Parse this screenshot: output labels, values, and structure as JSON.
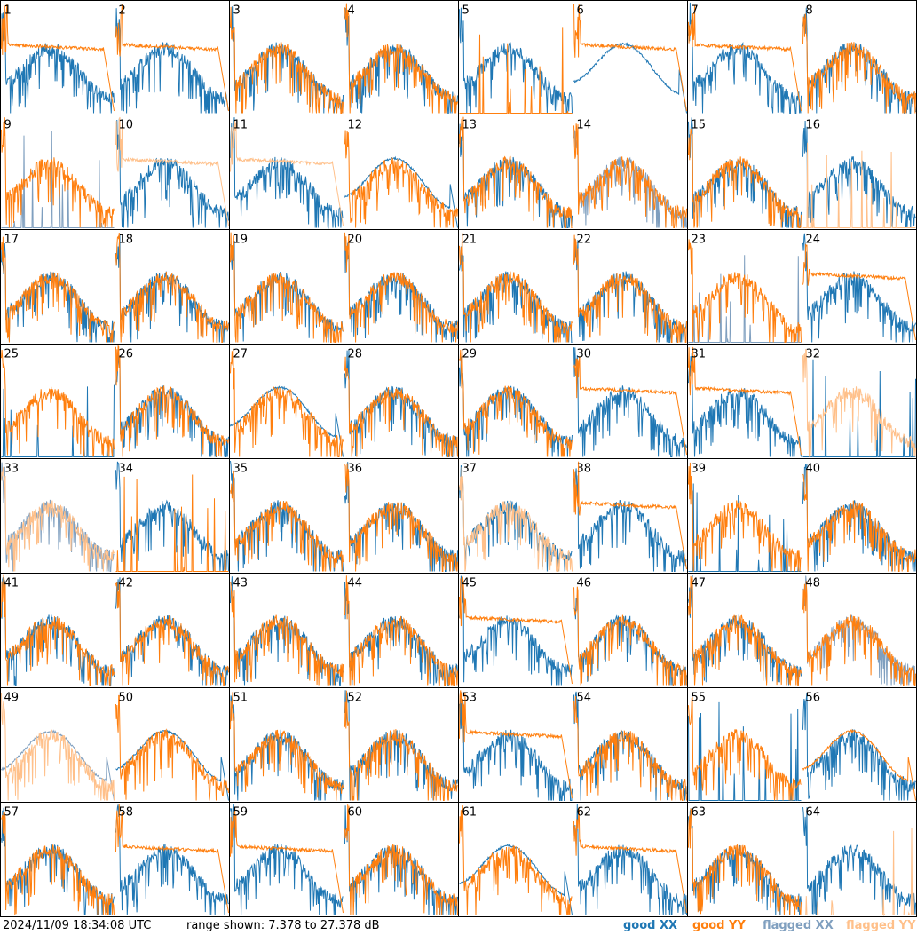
{
  "footer": {
    "timestamp": "2024/11/09 18:34:08 UTC",
    "range": "range shown: 7.378 to 27.378 dB"
  },
  "legend": [
    {
      "label": "good XX",
      "color": "#1f77b4"
    },
    {
      "label": "good YY",
      "color": "#ff7f0e"
    },
    {
      "label": "flagged XX",
      "color": "#7f9fbf"
    },
    {
      "label": "flagged YY",
      "color": "#ffc08a"
    }
  ],
  "chart_data": {
    "type": "line",
    "layout": "small-multiples 8x8",
    "y_range_db": [
      7.378,
      27.378
    ],
    "panels": [
      {
        "id": "1",
        "xx": "good",
        "yy": "good",
        "xx_shape": "noisy",
        "yy_shape": "smooth-rolloff"
      },
      {
        "id": "2",
        "xx": "good",
        "yy": "good",
        "xx_shape": "noisy",
        "yy_shape": "smooth-rolloff"
      },
      {
        "id": "3",
        "xx": "good",
        "yy": "good",
        "xx_shape": "noisy",
        "yy_shape": "noisy"
      },
      {
        "id": "4",
        "xx": "good",
        "yy": "good",
        "xx_shape": "noisy",
        "yy_shape": "noisy"
      },
      {
        "id": "5",
        "xx": "good",
        "yy": "good",
        "xx_shape": "noisy",
        "yy_shape": "spikes"
      },
      {
        "id": "6",
        "xx": "good",
        "yy": "good",
        "xx_shape": "smooth",
        "yy_shape": "smooth-rolloff"
      },
      {
        "id": "7",
        "xx": "good",
        "yy": "good",
        "xx_shape": "noisy",
        "yy_shape": "smooth-rolloff"
      },
      {
        "id": "8",
        "xx": "good",
        "yy": "good",
        "xx_shape": "noisy",
        "yy_shape": "noisy"
      },
      {
        "id": "9",
        "xx": "flagged",
        "yy": "good",
        "xx_shape": "spikes",
        "yy_shape": "noisy"
      },
      {
        "id": "10",
        "xx": "good",
        "yy": "flagged",
        "xx_shape": "noisy",
        "yy_shape": "smooth-rolloff"
      },
      {
        "id": "11",
        "xx": "good",
        "yy": "flagged",
        "xx_shape": "noisy",
        "yy_shape": "smooth-rolloff"
      },
      {
        "id": "12",
        "xx": "good",
        "yy": "good",
        "xx_shape": "smooth",
        "yy_shape": "noisy"
      },
      {
        "id": "13",
        "xx": "good",
        "yy": "good",
        "xx_shape": "noisy",
        "yy_shape": "noisy"
      },
      {
        "id": "14",
        "xx": "flagged",
        "yy": "good",
        "xx_shape": "noisy",
        "yy_shape": "noisy"
      },
      {
        "id": "15",
        "xx": "good",
        "yy": "good",
        "xx_shape": "noisy",
        "yy_shape": "noisy"
      },
      {
        "id": "16",
        "xx": "good",
        "yy": "flagged",
        "xx_shape": "noisy",
        "yy_shape": "spikes"
      },
      {
        "id": "17",
        "xx": "good",
        "yy": "good",
        "xx_shape": "noisy",
        "yy_shape": "noisy"
      },
      {
        "id": "18",
        "xx": "good",
        "yy": "good",
        "xx_shape": "noisy",
        "yy_shape": "noisy"
      },
      {
        "id": "19",
        "xx": "good",
        "yy": "good",
        "xx_shape": "noisy",
        "yy_shape": "noisy"
      },
      {
        "id": "20",
        "xx": "good",
        "yy": "good",
        "xx_shape": "noisy",
        "yy_shape": "noisy"
      },
      {
        "id": "21",
        "xx": "good",
        "yy": "good",
        "xx_shape": "noisy",
        "yy_shape": "noisy"
      },
      {
        "id": "22",
        "xx": "good",
        "yy": "good",
        "xx_shape": "noisy",
        "yy_shape": "noisy"
      },
      {
        "id": "23",
        "xx": "flagged",
        "yy": "good",
        "xx_shape": "spikes",
        "yy_shape": "noisy"
      },
      {
        "id": "24",
        "xx": "good",
        "yy": "good",
        "xx_shape": "noisy",
        "yy_shape": "smooth-rolloff"
      },
      {
        "id": "25",
        "xx": "good",
        "yy": "good",
        "xx_shape": "spikes",
        "yy_shape": "noisy"
      },
      {
        "id": "26",
        "xx": "good",
        "yy": "good",
        "xx_shape": "noisy",
        "yy_shape": "noisy"
      },
      {
        "id": "27",
        "xx": "good",
        "yy": "good",
        "xx_shape": "smooth",
        "yy_shape": "noisy"
      },
      {
        "id": "28",
        "xx": "good",
        "yy": "good",
        "xx_shape": "noisy",
        "yy_shape": "noisy"
      },
      {
        "id": "29",
        "xx": "good",
        "yy": "good",
        "xx_shape": "noisy",
        "yy_shape": "noisy"
      },
      {
        "id": "30",
        "xx": "good",
        "yy": "good",
        "xx_shape": "noisy",
        "yy_shape": "smooth-rolloff"
      },
      {
        "id": "31",
        "xx": "good",
        "yy": "good",
        "xx_shape": "noisy",
        "yy_shape": "smooth-rolloff"
      },
      {
        "id": "32",
        "xx": "good",
        "yy": "flagged",
        "xx_shape": "spikes",
        "yy_shape": "noisy"
      },
      {
        "id": "33",
        "xx": "flagged",
        "yy": "flagged",
        "xx_shape": "noisy",
        "yy_shape": "noisy"
      },
      {
        "id": "34",
        "xx": "good",
        "yy": "good",
        "xx_shape": "noisy",
        "yy_shape": "spikes"
      },
      {
        "id": "35",
        "xx": "good",
        "yy": "good",
        "xx_shape": "noisy",
        "yy_shape": "noisy"
      },
      {
        "id": "36",
        "xx": "good",
        "yy": "good",
        "xx_shape": "noisy",
        "yy_shape": "noisy"
      },
      {
        "id": "37",
        "xx": "good",
        "yy": "flagged",
        "xx_shape": "noisy",
        "yy_shape": "noisy"
      },
      {
        "id": "38",
        "xx": "good",
        "yy": "good",
        "xx_shape": "noisy",
        "yy_shape": "smooth-rolloff"
      },
      {
        "id": "39",
        "xx": "good",
        "yy": "good",
        "xx_shape": "spikes",
        "yy_shape": "noisy"
      },
      {
        "id": "40",
        "xx": "good",
        "yy": "good",
        "xx_shape": "noisy",
        "yy_shape": "noisy"
      },
      {
        "id": "41",
        "xx": "good",
        "yy": "good",
        "xx_shape": "noisy",
        "yy_shape": "noisy"
      },
      {
        "id": "42",
        "xx": "good",
        "yy": "good",
        "xx_shape": "noisy",
        "yy_shape": "noisy"
      },
      {
        "id": "43",
        "xx": "good",
        "yy": "good",
        "xx_shape": "noisy",
        "yy_shape": "noisy"
      },
      {
        "id": "44",
        "xx": "good",
        "yy": "good",
        "xx_shape": "noisy",
        "yy_shape": "noisy"
      },
      {
        "id": "45",
        "xx": "good",
        "yy": "good",
        "xx_shape": "noisy",
        "yy_shape": "smooth-rolloff"
      },
      {
        "id": "46",
        "xx": "good",
        "yy": "good",
        "xx_shape": "noisy",
        "yy_shape": "noisy"
      },
      {
        "id": "47",
        "xx": "good",
        "yy": "good",
        "xx_shape": "noisy",
        "yy_shape": "noisy"
      },
      {
        "id": "48",
        "xx": "flagged",
        "yy": "good",
        "xx_shape": "noisy",
        "yy_shape": "noisy"
      },
      {
        "id": "49",
        "xx": "flagged",
        "yy": "flagged",
        "xx_shape": "smooth",
        "yy_shape": "noisy"
      },
      {
        "id": "50",
        "xx": "good",
        "yy": "good",
        "xx_shape": "smooth",
        "yy_shape": "noisy"
      },
      {
        "id": "51",
        "xx": "good",
        "yy": "good",
        "xx_shape": "noisy",
        "yy_shape": "noisy"
      },
      {
        "id": "52",
        "xx": "good",
        "yy": "good",
        "xx_shape": "noisy",
        "yy_shape": "noisy"
      },
      {
        "id": "53",
        "xx": "good",
        "yy": "good",
        "xx_shape": "noisy",
        "yy_shape": "smooth-rolloff"
      },
      {
        "id": "54",
        "xx": "good",
        "yy": "good",
        "xx_shape": "noisy",
        "yy_shape": "noisy"
      },
      {
        "id": "55",
        "xx": "good",
        "yy": "good",
        "xx_shape": "spikes",
        "yy_shape": "noisy"
      },
      {
        "id": "56",
        "xx": "good",
        "yy": "good",
        "xx_shape": "noisy",
        "yy_shape": "smooth"
      },
      {
        "id": "57",
        "xx": "good",
        "yy": "good",
        "xx_shape": "noisy",
        "yy_shape": "noisy"
      },
      {
        "id": "58",
        "xx": "good",
        "yy": "good",
        "xx_shape": "noisy",
        "yy_shape": "smooth-rolloff"
      },
      {
        "id": "59",
        "xx": "good",
        "yy": "good",
        "xx_shape": "noisy",
        "yy_shape": "smooth-rolloff"
      },
      {
        "id": "60",
        "xx": "good",
        "yy": "good",
        "xx_shape": "noisy",
        "yy_shape": "noisy"
      },
      {
        "id": "61",
        "xx": "good",
        "yy": "good",
        "xx_shape": "smooth",
        "yy_shape": "noisy"
      },
      {
        "id": "62",
        "xx": "good",
        "yy": "good",
        "xx_shape": "noisy",
        "yy_shape": "smooth-rolloff"
      },
      {
        "id": "63",
        "xx": "good",
        "yy": "good",
        "xx_shape": "noisy",
        "yy_shape": "noisy"
      },
      {
        "id": "64",
        "xx": "good",
        "yy": "flagged",
        "xx_shape": "noisy",
        "yy_shape": "spikes"
      }
    ]
  }
}
